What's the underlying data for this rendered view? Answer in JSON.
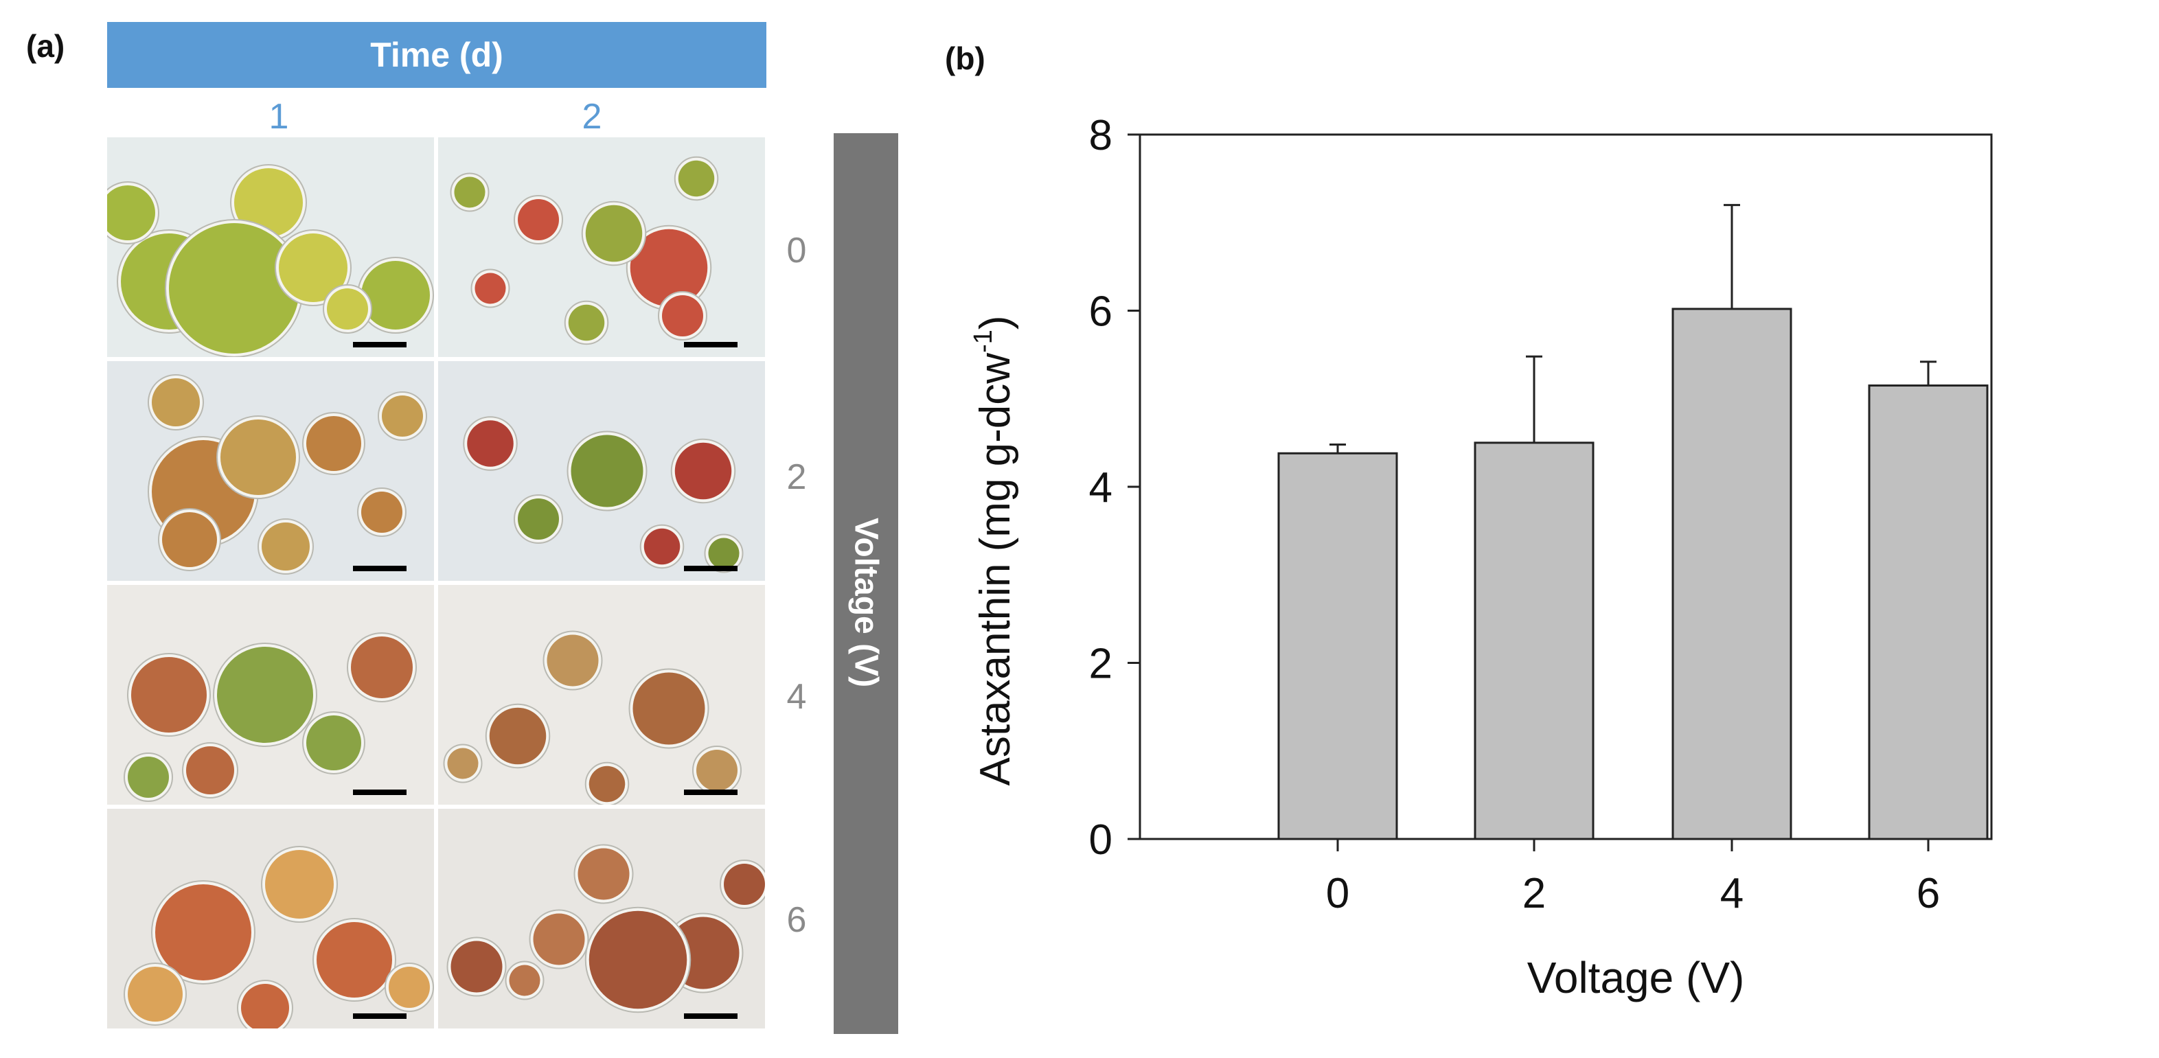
{
  "panels": {
    "a": {
      "label": "(a)",
      "time_header": "Time (d)",
      "time_columns": [
        "1",
        "2"
      ],
      "voltage_header": "Voltage (V)",
      "voltage_rows": [
        "0",
        "2",
        "4",
        "6"
      ]
    },
    "b": {
      "label": "(b)"
    }
  },
  "chart_data": {
    "type": "bar",
    "categories": [
      "0",
      "2",
      "4",
      "6"
    ],
    "values": [
      4.38,
      4.5,
      6.02,
      5.15
    ],
    "errors": [
      0.1,
      0.98,
      1.18,
      0.27
    ],
    "ylabel_main": "Astaxanthin (mg g-dcw",
    "ylabel_sup": "-1",
    "ylabel_close": ")",
    "xlabel": "Voltage (V)",
    "ylim": [
      0,
      8
    ],
    "yticks": [
      "0",
      "2",
      "4",
      "6",
      "8"
    ],
    "bar_color": "#c0c0c0",
    "grid": false
  }
}
